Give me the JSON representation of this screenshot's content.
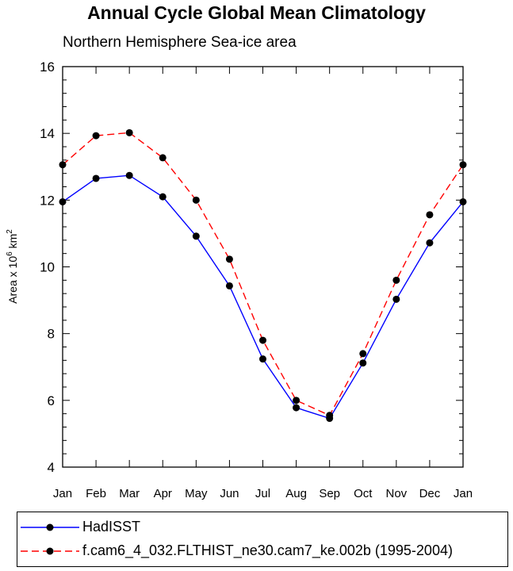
{
  "chart_data": {
    "type": "line",
    "title": "Annual Cycle Global Mean Climatology",
    "subtitle": "Northern Hemisphere Sea-ice area",
    "ylabel_base": "Area x 10",
    "ylabel_exp1": "6",
    "ylabel_unit": " km",
    "ylabel_exp2": "2",
    "xlabel": "",
    "categories": [
      "Jan",
      "Feb",
      "Mar",
      "Apr",
      "May",
      "Jun",
      "Jul",
      "Aug",
      "Sep",
      "Oct",
      "Nov",
      "Dec",
      "Jan"
    ],
    "ylim": [
      4,
      16
    ],
    "yticks": [
      4,
      6,
      8,
      10,
      12,
      14,
      16
    ],
    "grid": false,
    "legend_position": "bottom",
    "series": [
      {
        "name": "HadISST",
        "color": "#0000ff",
        "dash": "solid",
        "values": [
          11.95,
          12.65,
          12.74,
          12.1,
          10.92,
          9.43,
          7.24,
          5.78,
          5.46,
          7.12,
          9.03,
          10.72,
          11.95
        ]
      },
      {
        "name": "f.cam6_4_032.FLTHIST_ne30.cam7_ke.002b (1995-2004)",
        "color": "#ff0000",
        "dash": "dashed",
        "values": [
          13.06,
          13.93,
          14.02,
          13.27,
          12.0,
          10.23,
          7.8,
          6.0,
          5.55,
          7.4,
          9.6,
          11.56,
          13.06
        ]
      }
    ]
  }
}
